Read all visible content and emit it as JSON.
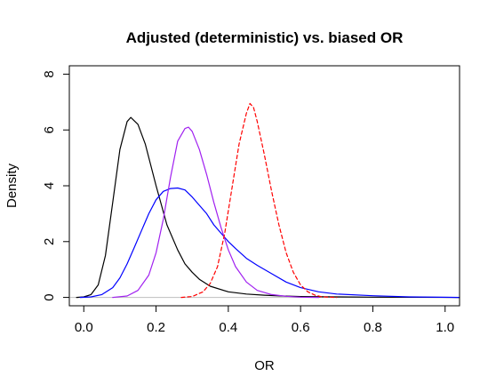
{
  "chart_data": {
    "type": "line",
    "title": "Adjusted (deterministic) vs. biased OR",
    "xlabel": "OR",
    "ylabel": "Density",
    "xlim": [
      -0.04,
      1.04
    ],
    "ylim": [
      -0.3,
      8.3
    ],
    "x_ticks": [
      0.0,
      0.2,
      0.4,
      0.6,
      0.8,
      1.0
    ],
    "x_tick_labels": [
      "0.0",
      "0.2",
      "0.4",
      "0.6",
      "0.8",
      "1.0"
    ],
    "y_ticks": [
      0,
      2,
      4,
      6,
      8
    ],
    "y_tick_labels": [
      "0",
      "2",
      "4",
      "6",
      "8"
    ],
    "grid": false,
    "legend": "none",
    "baseline": {
      "y": 0,
      "color": "#bebebe"
    },
    "series": [
      {
        "color": "#000000",
        "dash": "solid",
        "x": [
          -0.02,
          0.0,
          0.02,
          0.04,
          0.06,
          0.08,
          0.1,
          0.12,
          0.13,
          0.15,
          0.17,
          0.2,
          0.23,
          0.26,
          0.28,
          0.3,
          0.32,
          0.35,
          0.4,
          0.45,
          0.5,
          0.55,
          0.6,
          0.7,
          0.8,
          1.04
        ],
        "y": [
          0,
          0.02,
          0.1,
          0.45,
          1.5,
          3.4,
          5.3,
          6.3,
          6.45,
          6.2,
          5.5,
          4.0,
          2.6,
          1.7,
          1.2,
          0.9,
          0.65,
          0.4,
          0.2,
          0.12,
          0.08,
          0.05,
          0.03,
          0.02,
          0.01,
          0
        ]
      },
      {
        "color": "#0000ff",
        "dash": "solid",
        "x": [
          -0.01,
          0.02,
          0.05,
          0.08,
          0.1,
          0.12,
          0.14,
          0.16,
          0.18,
          0.2,
          0.22,
          0.24,
          0.26,
          0.28,
          0.3,
          0.32,
          0.34,
          0.36,
          0.38,
          0.4,
          0.42,
          0.45,
          0.48,
          0.52,
          0.56,
          0.6,
          0.65,
          0.7,
          0.8,
          0.9,
          1.04
        ],
        "y": [
          0,
          0.02,
          0.1,
          0.35,
          0.7,
          1.2,
          1.8,
          2.4,
          3.0,
          3.5,
          3.8,
          3.9,
          3.92,
          3.85,
          3.6,
          3.3,
          3.0,
          2.6,
          2.3,
          2.0,
          1.75,
          1.4,
          1.15,
          0.85,
          0.55,
          0.35,
          0.2,
          0.12,
          0.06,
          0.02,
          0
        ]
      },
      {
        "color": "#a020f0",
        "dash": "solid",
        "x": [
          0.08,
          0.12,
          0.15,
          0.18,
          0.2,
          0.22,
          0.24,
          0.26,
          0.28,
          0.29,
          0.3,
          0.32,
          0.34,
          0.36,
          0.38,
          0.4,
          0.42,
          0.45,
          0.48,
          0.52,
          0.56,
          0.6,
          0.65
        ],
        "y": [
          0,
          0.05,
          0.25,
          0.8,
          1.6,
          2.8,
          4.3,
          5.6,
          6.05,
          6.1,
          5.95,
          5.3,
          4.4,
          3.4,
          2.5,
          1.7,
          1.1,
          0.55,
          0.25,
          0.1,
          0.04,
          0.01,
          0
        ]
      },
      {
        "color": "#ff0000",
        "dash": "dashed",
        "x": [
          0.27,
          0.3,
          0.33,
          0.35,
          0.37,
          0.39,
          0.41,
          0.43,
          0.45,
          0.46,
          0.47,
          0.48,
          0.5,
          0.52,
          0.54,
          0.56,
          0.58,
          0.6,
          0.62,
          0.64,
          0.66,
          0.7
        ],
        "y": [
          0,
          0.03,
          0.2,
          0.5,
          1.1,
          2.3,
          3.9,
          5.5,
          6.6,
          6.95,
          6.8,
          6.3,
          5.1,
          3.8,
          2.6,
          1.6,
          0.9,
          0.45,
          0.2,
          0.08,
          0.02,
          0
        ]
      }
    ]
  }
}
